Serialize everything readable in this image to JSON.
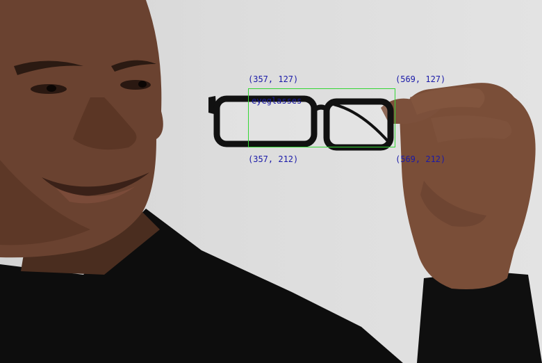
{
  "annotation": {
    "label": "eyeglasses",
    "box_color": "#33d633",
    "text_color": "#1a1aa8",
    "corners": {
      "top_left": "(357, 127)",
      "top_right": "(569, 127)",
      "bottom_left": "(357, 212)",
      "bottom_right": "(569, 212)"
    }
  }
}
